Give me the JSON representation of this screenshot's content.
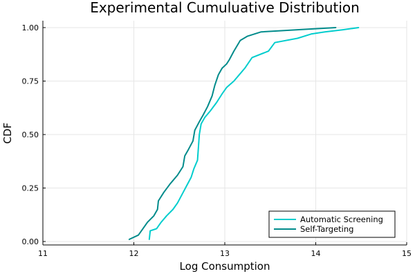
{
  "chart_data": {
    "type": "line",
    "title": "Experimental Cumuluative Distribution",
    "xlabel": "Log Consumption",
    "ylabel": "CDF",
    "xlim": [
      11,
      15
    ],
    "ylim": [
      0,
      1
    ],
    "xticks": [
      11,
      12,
      13,
      14,
      15
    ],
    "xtick_labels": [
      "11",
      "12",
      "13",
      "14",
      "15"
    ],
    "yticks": [
      0,
      0.25,
      0.5,
      0.75,
      1
    ],
    "ytick_labels": [
      "0.00",
      "0.25",
      "0.50",
      "0.75",
      "1.00"
    ],
    "grid": true,
    "legend_position": "bottom-right",
    "series": [
      {
        "name": "Automatic Screening",
        "color": "#00cdcd",
        "points": [
          [
            12.17,
            0.01
          ],
          [
            12.18,
            0.05
          ],
          [
            12.25,
            0.06
          ],
          [
            12.3,
            0.09
          ],
          [
            12.36,
            0.12
          ],
          [
            12.43,
            0.15
          ],
          [
            12.48,
            0.18
          ],
          [
            12.53,
            0.22
          ],
          [
            12.58,
            0.26
          ],
          [
            12.63,
            0.3
          ],
          [
            12.66,
            0.34
          ],
          [
            12.7,
            0.38
          ],
          [
            12.71,
            0.44
          ],
          [
            12.72,
            0.5
          ],
          [
            12.74,
            0.55
          ],
          [
            12.78,
            0.58
          ],
          [
            12.84,
            0.61
          ],
          [
            12.91,
            0.65
          ],
          [
            12.97,
            0.69
          ],
          [
            13.02,
            0.72
          ],
          [
            13.1,
            0.75
          ],
          [
            13.16,
            0.78
          ],
          [
            13.22,
            0.81
          ],
          [
            13.3,
            0.86
          ],
          [
            13.48,
            0.89
          ],
          [
            13.55,
            0.93
          ],
          [
            13.8,
            0.95
          ],
          [
            13.95,
            0.97
          ],
          [
            14.1,
            0.98
          ],
          [
            14.3,
            0.99
          ],
          [
            14.47,
            1.0
          ]
        ]
      },
      {
        "name": "Self-Targeting",
        "color": "#008b8b",
        "points": [
          [
            11.95,
            0.01
          ],
          [
            12.05,
            0.03
          ],
          [
            12.1,
            0.06
          ],
          [
            12.15,
            0.09
          ],
          [
            12.22,
            0.12
          ],
          [
            12.26,
            0.15
          ],
          [
            12.27,
            0.19
          ],
          [
            12.33,
            0.23
          ],
          [
            12.4,
            0.27
          ],
          [
            12.48,
            0.31
          ],
          [
            12.54,
            0.35
          ],
          [
            12.56,
            0.4
          ],
          [
            12.6,
            0.43
          ],
          [
            12.65,
            0.47
          ],
          [
            12.67,
            0.52
          ],
          [
            12.72,
            0.56
          ],
          [
            12.76,
            0.59
          ],
          [
            12.81,
            0.63
          ],
          [
            12.86,
            0.68
          ],
          [
            12.89,
            0.73
          ],
          [
            12.93,
            0.78
          ],
          [
            12.97,
            0.81
          ],
          [
            13.02,
            0.83
          ],
          [
            13.05,
            0.85
          ],
          [
            13.1,
            0.89
          ],
          [
            13.17,
            0.94
          ],
          [
            13.25,
            0.96
          ],
          [
            13.4,
            0.98
          ],
          [
            13.8,
            0.99
          ],
          [
            14.22,
            1.0
          ]
        ]
      }
    ]
  }
}
